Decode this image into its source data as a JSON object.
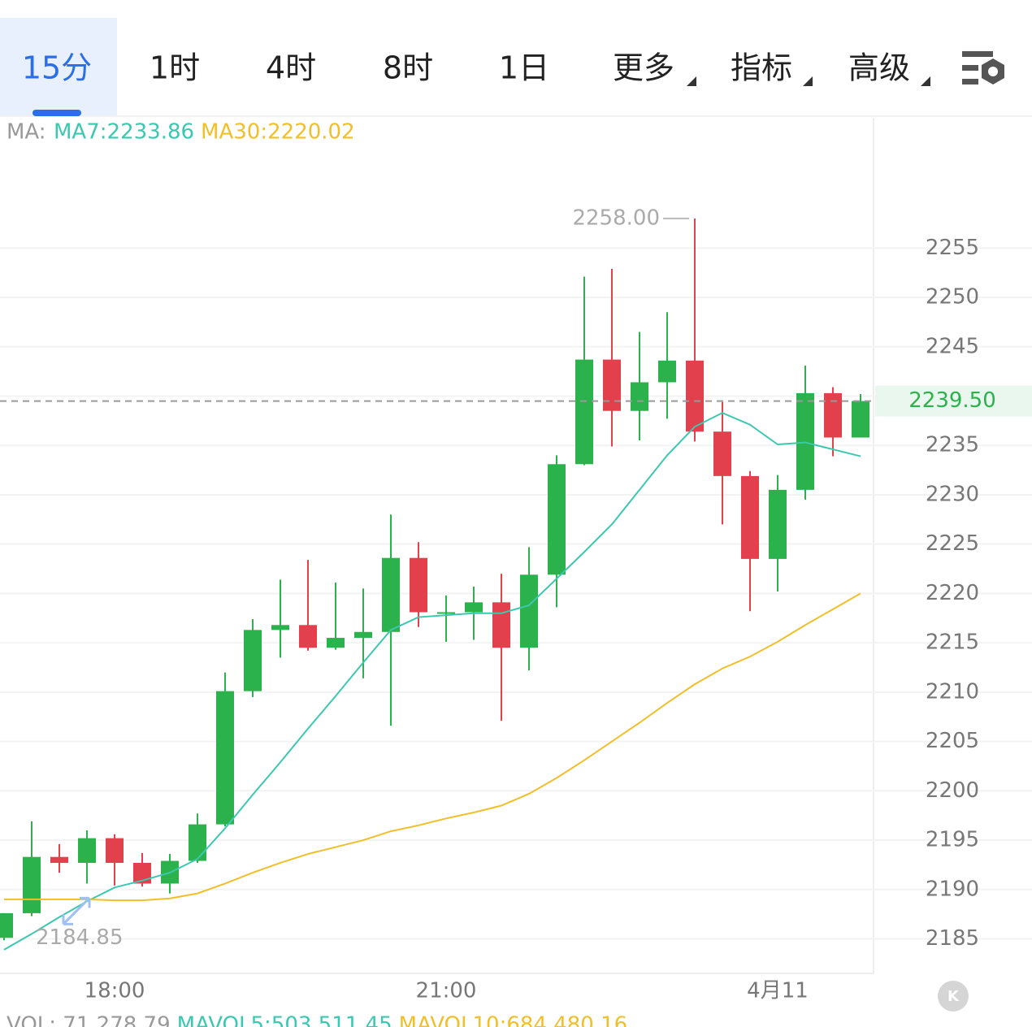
{
  "tabs": [
    "15分",
    "1时",
    "4时",
    "8时",
    "1日",
    "更多",
    "指标",
    "高级"
  ],
  "active_tab": 0,
  "chart_data": {
    "type": "candlestick",
    "legend_prefix": "MA:",
    "categories": [
      null,
      null,
      null,
      null,
      "18:00",
      null,
      null,
      null,
      null,
      null,
      null,
      null,
      null,
      null,
      null,
      null,
      "21:00",
      null,
      null,
      null,
      null,
      null,
      null,
      null,
      null,
      null,
      null,
      null,
      "4月11",
      null,
      null,
      null
    ],
    "open": [
      2185.1,
      2187.6,
      2193.3,
      2192.7,
      2195.2,
      2192.7,
      2190.6,
      2192.9,
      2196.6,
      2210.1,
      2216.3,
      2216.8,
      2214.5,
      2215.5,
      2216.1,
      2223.6,
      2218.1,
      2218.1,
      2219.1,
      2214.5,
      2221.9,
      2233.1,
      2243.7,
      2238.5,
      2241.4,
      2243.6,
      2236.4,
      2231.9,
      2223.5,
      2230.5,
      2240.3,
      2235.8
    ],
    "high": [
      2187.6,
      2196.9,
      2194.6,
      2196.0,
      2195.6,
      2193.7,
      2193.6,
      2197.7,
      2212.0,
      2217.4,
      2221.4,
      2223.4,
      2221.1,
      2220.5,
      2228.0,
      2225.2,
      2219.8,
      2220.7,
      2222.0,
      2224.7,
      2234.0,
      2252.1,
      2252.9,
      2246.5,
      2248.5,
      2258.0,
      2239.4,
      2232.4,
      2232.0,
      2243.1,
      2240.9,
      2240.2
    ],
    "low": [
      2184.85,
      2187.3,
      2191.7,
      2190.6,
      2190.4,
      2190.3,
      2189.6,
      2192.7,
      2196.4,
      2209.5,
      2213.5,
      2214.2,
      2214.3,
      2211.4,
      2206.6,
      2216.6,
      2215.1,
      2215.3,
      2207.1,
      2212.2,
      2218.6,
      2233.0,
      2234.9,
      2235.5,
      2237.7,
      2235.4,
      2227.0,
      2218.2,
      2220.2,
      2229.5,
      2233.9,
      2235.8
    ],
    "close": [
      2187.6,
      2193.3,
      2192.7,
      2195.2,
      2192.7,
      2190.6,
      2192.9,
      2196.6,
      2210.1,
      2216.3,
      2216.8,
      2214.5,
      2215.5,
      2216.1,
      2223.6,
      2218.1,
      2218.1,
      2219.1,
      2214.5,
      2221.9,
      2233.1,
      2243.7,
      2238.5,
      2241.4,
      2243.6,
      2236.4,
      2231.9,
      2223.5,
      2230.5,
      2240.3,
      2235.8,
      2239.5
    ],
    "up_color": "#2bb24c",
    "down_color": "#e3404e",
    "series": [
      {
        "name": "MA7:2233.86",
        "type": "line",
        "color": "#3cc8b0",
        "values": [
          2183.9,
          2185.5,
          2187.2,
          2188.8,
          2190.2,
          2190.9,
          2191.7,
          2193.1,
          2196.2,
          2199.6,
          2202.9,
          2206.3,
          2209.6,
          2213.0,
          2216.3,
          2217.6,
          2217.8,
          2218.0,
          2218.0,
          2218.8,
          2221.5,
          2224.2,
          2227.0,
          2230.5,
          2234.0,
          2236.9,
          2238.3,
          2237.1,
          2235.1,
          2235.3,
          2234.6,
          2233.9
        ]
      },
      {
        "name": "MA30:2220.02",
        "type": "line",
        "color": "#f0bf2a",
        "values": [
          2189.0,
          2189.0,
          2189.0,
          2189.0,
          2188.9,
          2188.9,
          2189.1,
          2189.6,
          2190.6,
          2191.7,
          2192.7,
          2193.6,
          2194.3,
          2195.0,
          2195.9,
          2196.5,
          2197.2,
          2197.8,
          2198.5,
          2199.7,
          2201.3,
          2203.1,
          2205.0,
          2206.9,
          2208.9,
          2210.8,
          2212.4,
          2213.6,
          2215.1,
          2216.8,
          2218.4,
          2220.0
        ]
      }
    ],
    "current_price": 2239.5,
    "current_price_label": "2239.50",
    "high_annotation": {
      "value": 2258.0,
      "label": "2258.00"
    },
    "low_annotation": {
      "value": 2184.85,
      "label": "2184.85"
    },
    "ylim": [
      2181.5,
      2268.2
    ],
    "yticks": [
      2185,
      2190,
      2195,
      2200,
      2205,
      2210,
      2215,
      2220,
      2225,
      2230,
      2235,
      2240,
      2245,
      2250,
      2255
    ],
    "grid": true
  },
  "volume_legend": [
    "VOL: 71,278.79",
    "MAVOL5:503,511.45",
    "MAVOL10:684,480.16"
  ]
}
